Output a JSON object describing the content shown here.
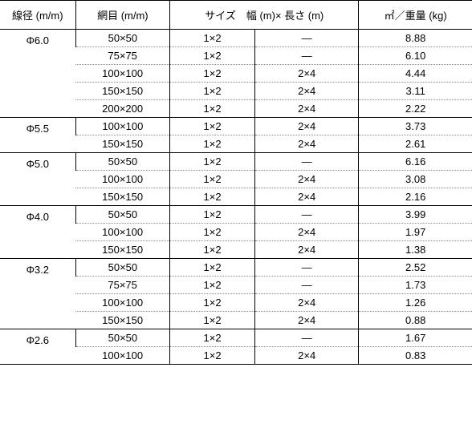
{
  "headers": {
    "diameter": "線径 (m/m)",
    "mesh": "網目 (m/m)",
    "size": "サイズ　幅 (m)× 長さ (m)",
    "weight": "㎡／重量 (kg)"
  },
  "groups": [
    {
      "diameter": "Φ6.0",
      "rows": [
        {
          "mesh": "50×50",
          "size1": "1×2",
          "size2": "—",
          "weight": "8.88"
        },
        {
          "mesh": "75×75",
          "size1": "1×2",
          "size2": "—",
          "weight": "6.10"
        },
        {
          "mesh": "100×100",
          "size1": "1×2",
          "size2": "2×4",
          "weight": "4.44"
        },
        {
          "mesh": "150×150",
          "size1": "1×2",
          "size2": "2×4",
          "weight": "3.11"
        },
        {
          "mesh": "200×200",
          "size1": "1×2",
          "size2": "2×4",
          "weight": "2.22"
        }
      ]
    },
    {
      "diameter": "Φ5.5",
      "rows": [
        {
          "mesh": "100×100",
          "size1": "1×2",
          "size2": "2×4",
          "weight": "3.73"
        },
        {
          "mesh": "150×150",
          "size1": "1×2",
          "size2": "2×4",
          "weight": "2.61"
        }
      ]
    },
    {
      "diameter": "Φ5.0",
      "rows": [
        {
          "mesh": "50×50",
          "size1": "1×2",
          "size2": "—",
          "weight": "6.16"
        },
        {
          "mesh": "100×100",
          "size1": "1×2",
          "size2": "2×4",
          "weight": "3.08"
        },
        {
          "mesh": "150×150",
          "size1": "1×2",
          "size2": "2×4",
          "weight": "2.16"
        }
      ]
    },
    {
      "diameter": "Φ4.0",
      "rows": [
        {
          "mesh": "50×50",
          "size1": "1×2",
          "size2": "—",
          "weight": "3.99"
        },
        {
          "mesh": "100×100",
          "size1": "1×2",
          "size2": "2×4",
          "weight": "1.97"
        },
        {
          "mesh": "150×150",
          "size1": "1×2",
          "size2": "2×4",
          "weight": "1.38"
        }
      ]
    },
    {
      "diameter": "Φ3.2",
      "rows": [
        {
          "mesh": "50×50",
          "size1": "1×2",
          "size2": "—",
          "weight": "2.52"
        },
        {
          "mesh": "75×75",
          "size1": "1×2",
          "size2": "—",
          "weight": "1.73"
        },
        {
          "mesh": "100×100",
          "size1": "1×2",
          "size2": "2×4",
          "weight": "1.26"
        },
        {
          "mesh": "150×150",
          "size1": "1×2",
          "size2": "2×4",
          "weight": "0.88"
        }
      ]
    },
    {
      "diameter": "Φ2.6",
      "rows": [
        {
          "mesh": "50×50",
          "size1": "1×2",
          "size2": "—",
          "weight": "1.67"
        },
        {
          "mesh": "100×100",
          "size1": "1×2",
          "size2": "2×4",
          "weight": "0.83"
        }
      ]
    }
  ]
}
